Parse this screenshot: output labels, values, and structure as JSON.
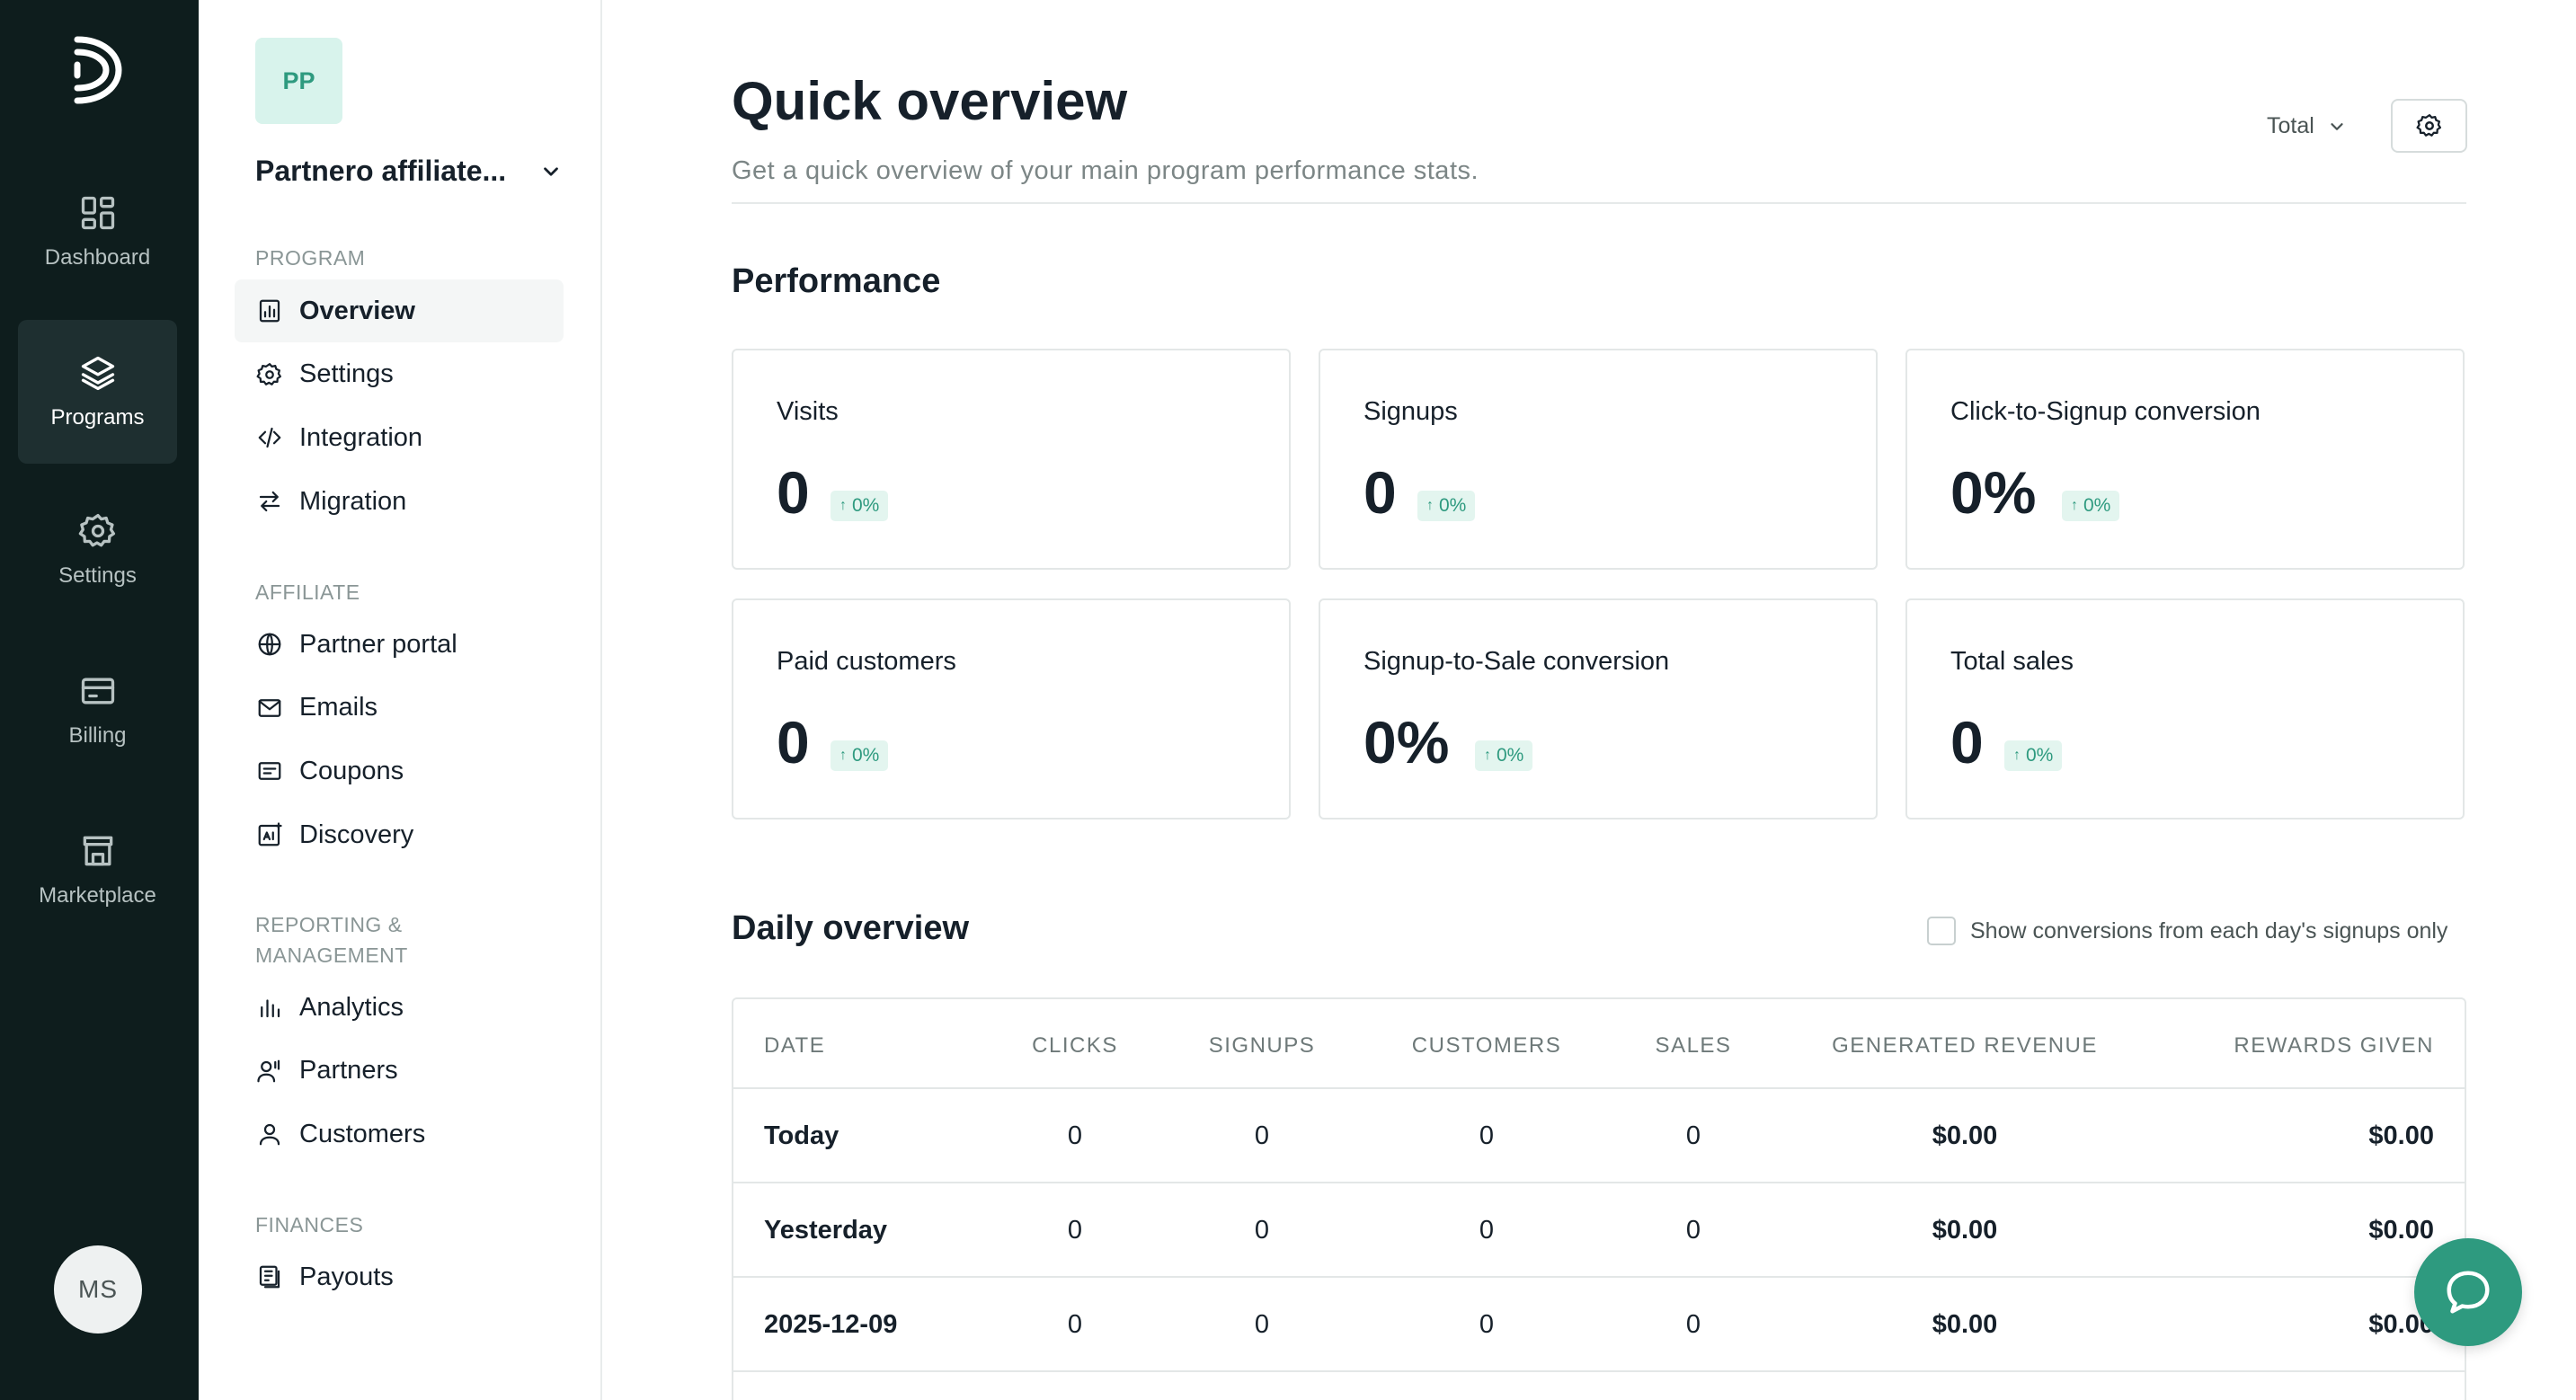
{
  "rail": {
    "items": [
      {
        "label": "Dashboard",
        "icon": "dashboard-icon"
      },
      {
        "label": "Programs",
        "icon": "layers-icon"
      },
      {
        "label": "Settings",
        "icon": "gear-icon"
      },
      {
        "label": "Billing",
        "icon": "billing-icon"
      },
      {
        "label": "Marketplace",
        "icon": "store-icon"
      }
    ],
    "active": "Programs",
    "avatar": "MS"
  },
  "sidebar": {
    "badge": "PP",
    "program_name": "Partnero affiliate...",
    "sections": [
      {
        "label": "PROGRAM",
        "items": [
          "Overview",
          "Settings",
          "Integration",
          "Migration"
        ]
      },
      {
        "label": "AFFILIATE",
        "items": [
          "Partner portal",
          "Emails",
          "Coupons",
          "Discovery"
        ]
      },
      {
        "label": "REPORTING &\nMANAGEMENT",
        "items": [
          "Analytics",
          "Partners",
          "Customers"
        ]
      },
      {
        "label": "FINANCES",
        "items": [
          "Payouts"
        ]
      }
    ],
    "active_item": "Overview"
  },
  "header": {
    "title": "Quick overview",
    "subtitle": "Get a quick overview of your main program performance stats.",
    "range": "Total"
  },
  "performance": {
    "title": "Performance",
    "cards": [
      {
        "label": "Visits",
        "value": "0",
        "delta": "0%"
      },
      {
        "label": "Signups",
        "value": "0",
        "delta": "0%"
      },
      {
        "label": "Click-to-Signup conversion",
        "value": "0%",
        "delta": "0%"
      },
      {
        "label": "Paid customers",
        "value": "0",
        "delta": "0%"
      },
      {
        "label": "Signup-to-Sale conversion",
        "value": "0%",
        "delta": "0%"
      },
      {
        "label": "Total sales",
        "value": "0",
        "delta": "0%"
      }
    ]
  },
  "daily": {
    "title": "Daily overview",
    "checkbox_label": "Show conversions from each day's signups only",
    "columns": [
      "DATE",
      "CLICKS",
      "SIGNUPS",
      "CUSTOMERS",
      "SALES",
      "GENERATED REVENUE",
      "REWARDS GIVEN"
    ],
    "rows": [
      [
        "Today",
        "0",
        "0",
        "0",
        "0",
        "$0.00",
        "$0.00"
      ],
      [
        "Yesterday",
        "0",
        "0",
        "0",
        "0",
        "$0.00",
        "$0.00"
      ],
      [
        "2025-12-09",
        "0",
        "0",
        "0",
        "0",
        "$0.00",
        "$0.00"
      ]
    ]
  },
  "colors": {
    "rail_bg": "#0e1d1d",
    "accent": "#2e9a7f",
    "badge_bg": "#d8f3ec"
  }
}
